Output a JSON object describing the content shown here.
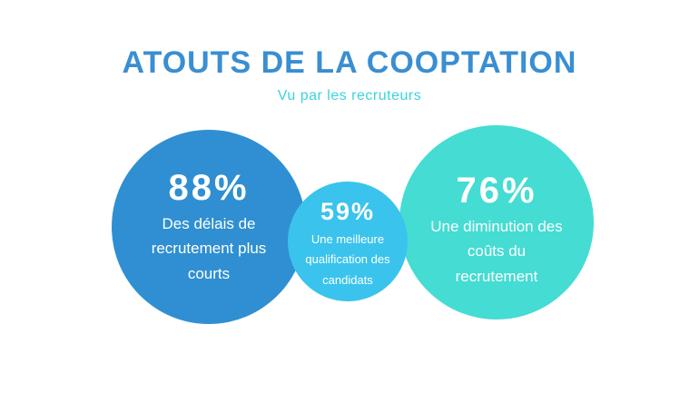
{
  "header": {
    "title": "ATOUTS DE LA COOPTATION",
    "subtitle": "Vu par les recruteurs"
  },
  "bubbles": [
    {
      "percent": "88%",
      "label": "Des délais de recrutement plus courts",
      "label_lines": [
        "Des délais de",
        "recrutement plus",
        "courts"
      ],
      "color": "#2f8fd2",
      "size": "large"
    },
    {
      "percent": "59%",
      "label": "Une meilleure qualification des candidats",
      "label_lines": [
        "Une meilleure",
        "qualification des",
        "candidats"
      ],
      "color": "#3ac3ed",
      "size": "small"
    },
    {
      "percent": "76%",
      "label": "Une diminution des coûts du recrutement",
      "label_lines": [
        "Une diminution des",
        "coûts du",
        "recrutement"
      ],
      "color": "#44dcd3",
      "size": "large"
    }
  ],
  "colors": {
    "background": "#ffffff",
    "title_text": "#3a8ed2",
    "subtitle_text": "#3bd4dc",
    "bubble_text": "#ffffff",
    "bubble_left": "#2f8fd2",
    "bubble_middle": "#3ac3ed",
    "bubble_right": "#44dcd3"
  },
  "chart_data": {
    "type": "bubble",
    "title": "ATOUTS DE LA COOPTATION",
    "subtitle": "Vu par les recruteurs",
    "legend": "none",
    "series": [
      {
        "value": 88,
        "label": "Des délais de recrutement plus courts",
        "color": "#2f8fd2",
        "relative_size": "large"
      },
      {
        "value": 59,
        "label": "Une meilleure qualification des candidats",
        "color": "#3ac3ed",
        "relative_size": "small"
      },
      {
        "value": 76,
        "label": "Une diminution des coûts du recrutement",
        "color": "#44dcd3",
        "relative_size": "large"
      }
    ]
  }
}
